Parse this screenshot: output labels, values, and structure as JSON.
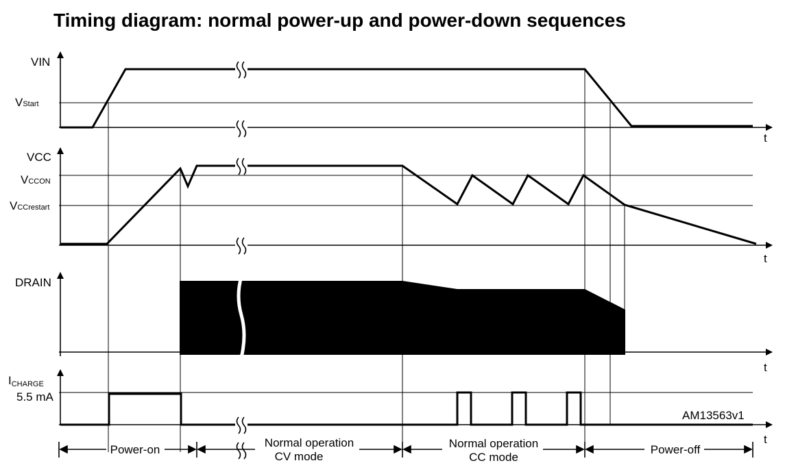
{
  "title": "Timing diagram: normal power-up and power-down sequences",
  "signals": {
    "vin": "VIN",
    "vstart_main": "V",
    "vstart_sub": "Start",
    "vcc": "VCC",
    "vccon_main": "V",
    "vccon_sub": "CCON",
    "vccrestart_main": "V",
    "vccrestart_sub": "CCrestart",
    "drain": "DRAIN",
    "icharge_main": "I",
    "icharge_sub": "CHARGE",
    "icharge_level": "5.5 mA"
  },
  "time_axis_label": "t",
  "figure_code": "AM13563v1",
  "phases": [
    {
      "label": "Power-on"
    },
    {
      "label_line1": "Normal operation",
      "label_line2": "CV mode"
    },
    {
      "label_line1": "Normal operation",
      "label_line2": "CC mode"
    },
    {
      "label": "Power-off"
    }
  ]
}
